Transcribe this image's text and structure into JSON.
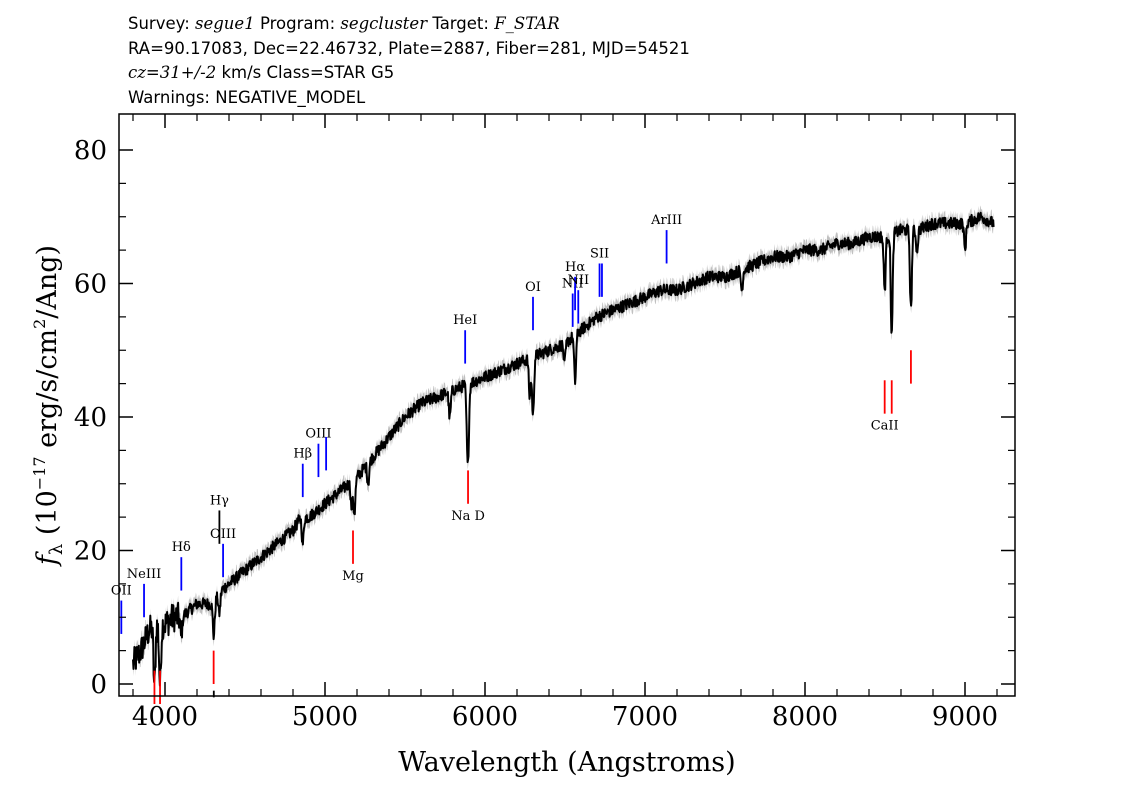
{
  "header": {
    "survey_label": "Survey:",
    "survey_value": "segue1",
    "program_label": "Program:",
    "program_value": "segcluster",
    "target_label": "Target:",
    "target_value": "F_STAR",
    "line2": "RA=90.17083, Dec=22.46732, Plate=2887, Fiber=281, MJD=54521",
    "redshift_value": "cz=31+/-2",
    "redshift_rest": " km/s Class=STAR G5",
    "warnings": "Warnings: NEGATIVE_MODEL"
  },
  "colors": {
    "spectrum": "#000000",
    "error_band": "#c0c0c0",
    "emission_line": "#0000ff",
    "absorption_line": "#ff0000",
    "other_line": "#000000"
  },
  "chart_data": {
    "type": "line",
    "xlabel": "Wavelength (Angstroms)",
    "ylabel_parts": {
      "f": "f",
      "sub": "λ",
      "pre": " (10",
      "exp": "−17",
      "mid": " erg/s/cm",
      "exp2": "2",
      "post": "/Ang)"
    },
    "xlim": [
      3700,
      9300
    ],
    "ylim": [
      -2,
      85
    ],
    "x_ticks": [
      4000,
      5000,
      6000,
      7000,
      8000,
      9000
    ],
    "y_ticks": [
      0,
      20,
      40,
      60,
      80
    ],
    "series": [
      {
        "x": [
          3800,
          3850,
          3900,
          3950,
          4000,
          4050,
          4100,
          4150,
          4200,
          4250,
          4300,
          4350,
          4400,
          4450,
          4500,
          4550,
          4600,
          4650,
          4700,
          4750,
          4800,
          4850,
          4900,
          4950,
          5000,
          5100,
          5200,
          5300,
          5400,
          5500,
          5600,
          5700,
          5800,
          5900,
          6000,
          6100,
          6200,
          6300,
          6400,
          6500,
          6600,
          6700,
          6800,
          6900,
          7000,
          7100,
          7200,
          7300,
          7400,
          7500,
          7600,
          7700,
          7800,
          7900,
          8000,
          8100,
          8200,
          8300,
          8400,
          8500,
          8600,
          8700,
          8800,
          8900,
          9000,
          9100,
          9180
        ],
        "y": [
          3,
          5,
          8,
          9,
          9,
          10,
          10,
          11,
          12,
          12,
          12,
          14,
          15,
          16,
          17,
          18,
          19,
          20,
          21,
          22,
          23,
          25,
          25,
          26,
          27,
          29,
          31,
          34,
          37,
          40,
          42,
          43,
          44,
          45,
          46,
          47,
          48,
          49,
          50,
          51,
          53,
          55,
          56,
          57,
          58,
          59,
          59,
          60,
          61,
          61,
          62,
          63,
          64,
          64,
          65,
          65,
          66,
          66,
          67,
          67,
          68,
          68,
          69,
          69,
          69,
          70,
          69
        ]
      }
    ],
    "absorption_dips": [
      {
        "x": 3934,
        "depth": 9
      },
      {
        "x": 3969,
        "depth": 9
      },
      {
        "x": 4102,
        "depth": 3
      },
      {
        "x": 4305,
        "depth": 5
      },
      {
        "x": 4340,
        "depth": 3
      },
      {
        "x": 4861,
        "depth": 4
      },
      {
        "x": 5167,
        "depth": 4
      },
      {
        "x": 5184,
        "depth": 5
      },
      {
        "x": 5270,
        "depth": 3
      },
      {
        "x": 5780,
        "depth": 4
      },
      {
        "x": 5890,
        "depth": 8
      },
      {
        "x": 5896,
        "depth": 6
      },
      {
        "x": 6280,
        "depth": 6
      },
      {
        "x": 6300,
        "depth": 9
      },
      {
        "x": 6497,
        "depth": 3
      },
      {
        "x": 6563,
        "depth": 7
      },
      {
        "x": 7605,
        "depth": 3
      },
      {
        "x": 8498,
        "depth": 8
      },
      {
        "x": 8542,
        "depth": 15
      },
      {
        "x": 8662,
        "depth": 12
      },
      {
        "x": 8700,
        "depth": 3
      },
      {
        "x": 9000,
        "depth": 4
      }
    ],
    "emission_lines": [
      {
        "label": "OII",
        "x": 3727,
        "y0": 7.5,
        "y1": 12.5
      },
      {
        "label": "NeIII",
        "x": 3869,
        "y0": 10,
        "y1": 15
      },
      {
        "label": "Hδ",
        "x": 4102,
        "y0": 14,
        "y1": 19
      },
      {
        "label": "OIII",
        "x": 4363,
        "y0": 16,
        "y1": 21
      },
      {
        "label": "Hβ",
        "x": 4861,
        "y0": 28,
        "y1": 33
      },
      {
        "label": "OIII",
        "x": 4959,
        "y0": 31,
        "y1": 36
      },
      {
        "label": "",
        "x": 5007,
        "y0": 32,
        "y1": 37
      },
      {
        "label": "HeI",
        "x": 5876,
        "y0": 48,
        "y1": 53
      },
      {
        "label": "OI",
        "x": 6300,
        "y0": 53,
        "y1": 58
      },
      {
        "label": "NII",
        "x": 6548,
        "y0": 53.5,
        "y1": 58.5
      },
      {
        "label": "Hα",
        "x": 6563,
        "y0": 56,
        "y1": 61
      },
      {
        "label": "NII",
        "x": 6583,
        "y0": 54,
        "y1": 59
      },
      {
        "label": "SII",
        "x": 6716,
        "y0": 58,
        "y1": 63
      },
      {
        "label": "",
        "x": 6731,
        "y0": 58,
        "y1": 63
      },
      {
        "label": "ArIII",
        "x": 7135,
        "y0": 63,
        "y1": 68
      }
    ],
    "absorption_lines": [
      {
        "label": "",
        "x": 3934,
        "y0": -3,
        "y1": 2
      },
      {
        "label": "",
        "x": 3969,
        "y0": -3,
        "y1": 2
      },
      {
        "label": "",
        "x": 4304,
        "y0": 0,
        "y1": 5
      },
      {
        "label": "Mg",
        "x": 5175,
        "y0": 18,
        "y1": 23
      },
      {
        "label": "Na D",
        "x": 5894,
        "y0": 27,
        "y1": 32
      },
      {
        "label": "CaII",
        "x": 8498,
        "y0": 40.5,
        "y1": 45.5
      },
      {
        "label": "",
        "x": 8542,
        "y0": 40.5,
        "y1": 45.5
      },
      {
        "label": "",
        "x": 8662,
        "y0": 45,
        "y1": 50
      }
    ],
    "other_lines": [
      {
        "label": "Hγ",
        "x": 4340,
        "y0": 21,
        "y1": 26
      },
      {
        "label": "",
        "x": 4305,
        "y0": -2,
        "y1": -1
      }
    ]
  }
}
